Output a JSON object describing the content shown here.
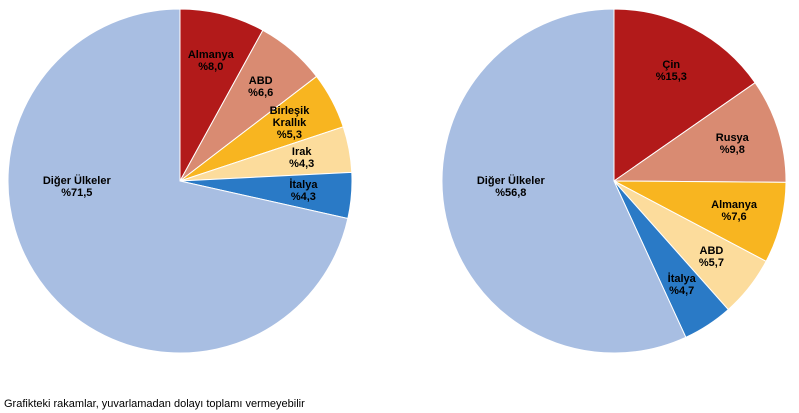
{
  "chart_data": [
    {
      "type": "pie",
      "categories": [
        "Almanya",
        "ABD",
        "Birleşik\nKrallık",
        "Irak",
        "İtalya",
        "Diğer Ülkeler"
      ],
      "values": [
        8.0,
        6.6,
        5.3,
        4.3,
        4.3,
        71.5
      ],
      "value_labels": [
        "%8,0",
        "%6,6",
        "%5,3",
        "%4,3",
        "%4,3",
        "%71,5"
      ],
      "colors": [
        "#b21a1a",
        "#d98b72",
        "#f8b520",
        "#fcdc9c",
        "#2a7ac6",
        "#a8bee2"
      ]
    },
    {
      "type": "pie",
      "categories": [
        "Çin",
        "Rusya",
        "Almanya",
        "ABD",
        "İtalya",
        "Diğer Ülkeler"
      ],
      "values": [
        15.3,
        9.8,
        7.6,
        5.7,
        4.7,
        56.8
      ],
      "value_labels": [
        "%15,3",
        "%9,8",
        "%7,6",
        "%5,7",
        "%4,7",
        "%56,8"
      ],
      "colors": [
        "#b21a1a",
        "#d98b72",
        "#f8b520",
        "#fcdc9c",
        "#2a7ac6",
        "#a8bee2"
      ]
    }
  ],
  "note": "Grafikteki rakamlar, yuvarlamadan dolayı toplamı vermeyebilir"
}
